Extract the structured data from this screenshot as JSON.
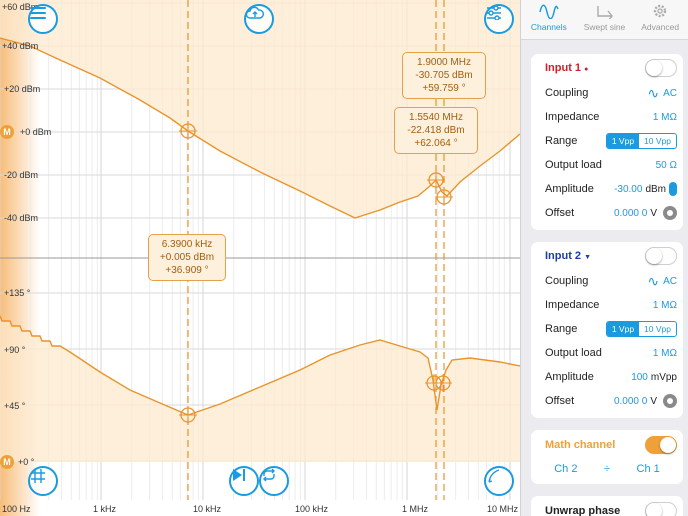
{
  "plot": {
    "magnitude_axis": [
      "+60 dBm",
      "+40 dBm",
      "+20 dBm",
      "+0 dBm",
      "-20 dBm",
      "-40 dBm"
    ],
    "phase_axis": [
      "+135 °",
      "+90 °",
      "+45 °",
      "+0 °"
    ],
    "frequency_axis": [
      "100 Hz",
      "1 kHz",
      "10 kHz",
      "100 kHz",
      "1 MHz",
      "10 MHz"
    ],
    "math_marker_badge": "M",
    "colors": {
      "trace": "#e8942c",
      "accent": "#1a9be0",
      "fill": "#fde9cf"
    }
  },
  "readouts": [
    {
      "freq": "1.9000 MHz",
      "mag": "-30.705 dBm",
      "phase": "+59.759 °"
    },
    {
      "freq": "1.5540 MHz",
      "mag": "-22.418 dBm",
      "phase": "+62.064 °"
    },
    {
      "freq": "6.3900 kHz",
      "mag": "+0.005 dBm",
      "phase": "+36.909 °"
    }
  ],
  "tabs": [
    {
      "label": "Channels",
      "icon": "waveform-icon",
      "active": true
    },
    {
      "label": "Swept sine",
      "icon": "sweep-arrow-icon",
      "active": false
    },
    {
      "label": "Advanced",
      "icon": "gear-icon",
      "active": false
    }
  ],
  "input1": {
    "title": "Input 1",
    "coupling_label": "Coupling",
    "coupling_value": "AC",
    "impedance_label": "Impedance",
    "impedance_value": "1 MΩ",
    "range_label": "Range",
    "range_options": [
      "1 Vpp",
      "10 Vpp"
    ],
    "range_selected": "1 Vpp",
    "output_load_label": "Output load",
    "output_load_value": "50 Ω",
    "amplitude_label": "Amplitude",
    "amplitude_value": "-30.00",
    "amplitude_unit": "dBm",
    "offset_label": "Offset",
    "offset_value": "0.000 0",
    "offset_unit": "V",
    "enabled": false
  },
  "input2": {
    "title": "Input 2",
    "coupling_label": "Coupling",
    "coupling_value": "AC",
    "impedance_label": "Impedance",
    "impedance_value": "1 MΩ",
    "range_label": "Range",
    "range_options": [
      "1 Vpp",
      "10 Vpp"
    ],
    "range_selected": "1 Vpp",
    "output_load_label": "Output load",
    "output_load_value": "1 MΩ",
    "amplitude_label": "Amplitude",
    "amplitude_value": "100",
    "amplitude_unit": "mVpp",
    "offset_label": "Offset",
    "offset_value": "0.000 0",
    "offset_unit": "V",
    "enabled": false
  },
  "math": {
    "title": "Math channel",
    "left": "Ch 2",
    "operator": "÷",
    "right": "Ch 1",
    "enabled": true
  },
  "unwrap": {
    "title": "Unwrap phase",
    "enabled": false
  }
}
